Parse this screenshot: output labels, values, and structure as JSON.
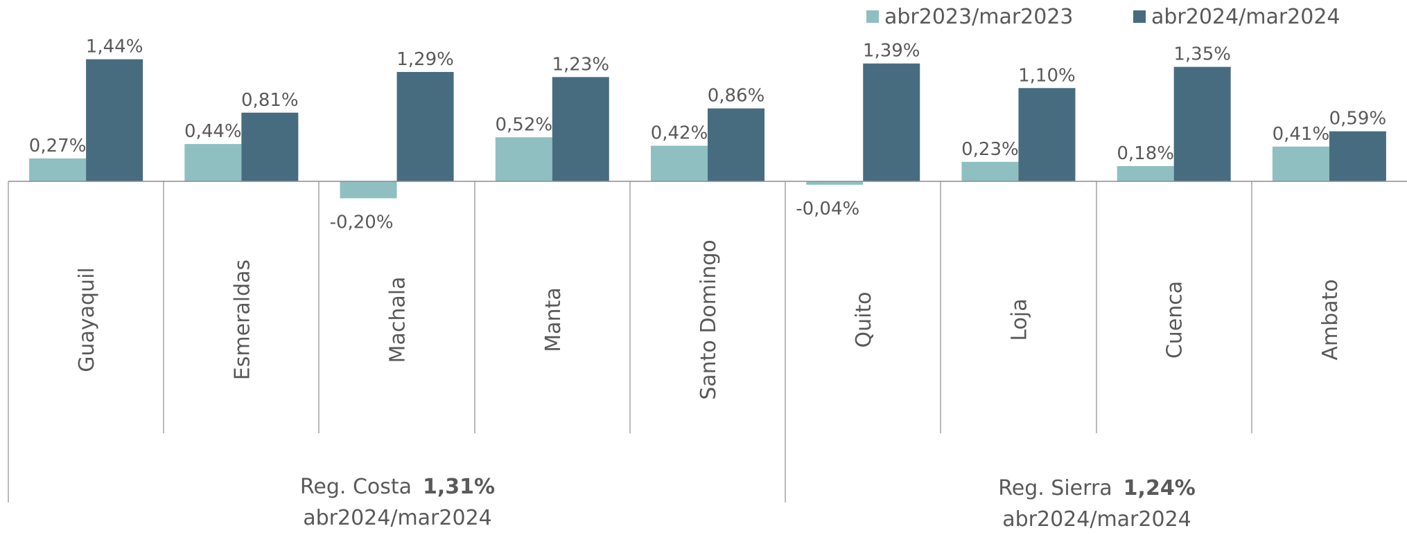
{
  "legend": {
    "series1": "abr2023/mar2023",
    "series2": "abr2024/mar2024"
  },
  "colors": {
    "series1": "#8fbfc1",
    "series2": "#476c80",
    "axis": "#8c8c8c",
    "text": "#595959"
  },
  "regions": [
    {
      "name": "Reg. Costa",
      "value": "1,31%",
      "period": "abr2024/mar2024"
    },
    {
      "name": "Reg. Sierra",
      "value": "1,24%",
      "period": "abr2024/mar2024"
    }
  ],
  "chart_data": {
    "type": "bar",
    "categories": [
      "Guayaquil",
      "Esmeraldas",
      "Machala",
      "Manta",
      "Santo Domingo",
      "Quito",
      "Loja",
      "Cuenca",
      "Ambato"
    ],
    "groups": [
      {
        "name": "Reg. Costa",
        "categories": [
          "Guayaquil",
          "Esmeraldas",
          "Machala",
          "Manta",
          "Santo Domingo"
        ]
      },
      {
        "name": "Reg. Sierra",
        "categories": [
          "Quito",
          "Loja",
          "Cuenca",
          "Ambato"
        ]
      }
    ],
    "series": [
      {
        "name": "abr2023/mar2023",
        "values": [
          0.27,
          0.44,
          -0.2,
          0.52,
          0.42,
          -0.04,
          0.23,
          0.18,
          0.41
        ],
        "labels": [
          "0,27%",
          "0,44%",
          "-0,20%",
          "0,52%",
          "0,42%",
          "-0,04%",
          "0,23%",
          "0,18%",
          "0,41%"
        ]
      },
      {
        "name": "abr2024/mar2024",
        "values": [
          1.44,
          0.81,
          1.29,
          1.23,
          0.86,
          1.39,
          1.1,
          1.35,
          0.59
        ],
        "labels": [
          "1,44%",
          "0,81%",
          "1,29%",
          "1,23%",
          "0,86%",
          "1,39%",
          "1,10%",
          "1,35%",
          "0,59%"
        ]
      }
    ],
    "ylim": [
      -0.25,
      1.5
    ],
    "grid": false,
    "legend_position": "top-right"
  }
}
